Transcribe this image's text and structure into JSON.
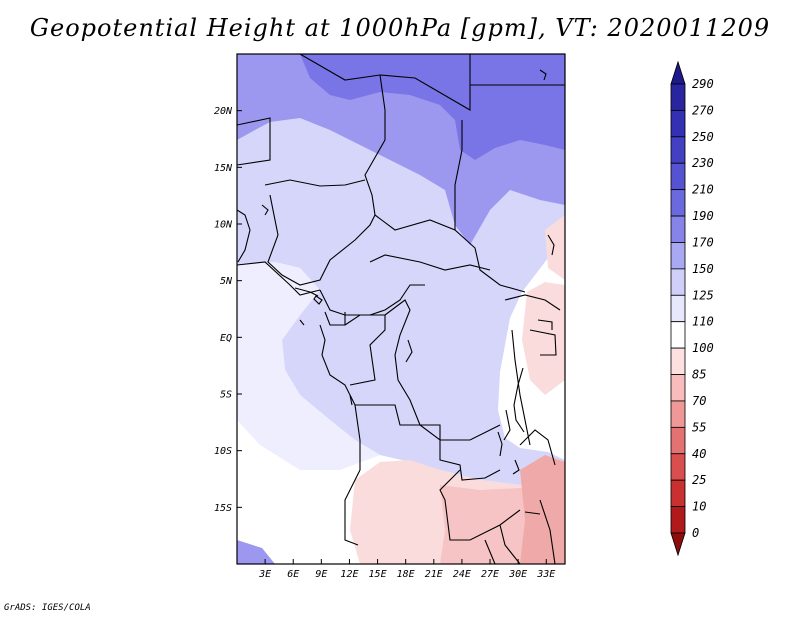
{
  "title": "Geopotential Height at 1000hPa [gpm], VT: 2020011209",
  "credit": "GrADS: IGES/COLA",
  "map": {
    "lon_range": [
      0,
      35
    ],
    "lat_range": [
      -20,
      25
    ],
    "x_ticks": [
      "3E",
      "6E",
      "9E",
      "12E",
      "15E",
      "18E",
      "21E",
      "24E",
      "27E",
      "30E",
      "33E"
    ],
    "x_tick_lons": [
      3,
      6,
      9,
      12,
      15,
      18,
      21,
      24,
      27,
      30,
      33
    ],
    "y_ticks": [
      "20N",
      "15N",
      "10N",
      "5N",
      "EQ",
      "5S",
      "10S",
      "15S"
    ],
    "y_tick_lats": [
      20,
      15,
      10,
      5,
      0,
      -5,
      -10,
      -15
    ]
  },
  "colorbar": {
    "labels": [
      "290",
      "270",
      "250",
      "230",
      "210",
      "190",
      "170",
      "150",
      "125",
      "110",
      "100",
      "85",
      "70",
      "55",
      "40",
      "25",
      "10",
      "0"
    ],
    "colors": [
      "#1e1a8c",
      "#28259f",
      "#3430b4",
      "#4340c4",
      "#5653d2",
      "#6b69de",
      "#8684e8",
      "#a9a8f2",
      "#cfcffa",
      "#e8e8fd",
      "#ffffff",
      "#fde0e0",
      "#f8bcbc",
      "#f09898",
      "#e57272",
      "#d94e4e",
      "#c93030",
      "#b01a1a",
      "#8f0c0c"
    ]
  },
  "field_colors": {
    "deep": "#7a75e6",
    "mid": "#9c98ef",
    "light": "#d6d6fb",
    "pale": "#eeeefe",
    "white": "#ffffff",
    "pink1": "#fbdcdc",
    "pink2": "#f6c4c4",
    "pink3": "#f0a9a9"
  }
}
